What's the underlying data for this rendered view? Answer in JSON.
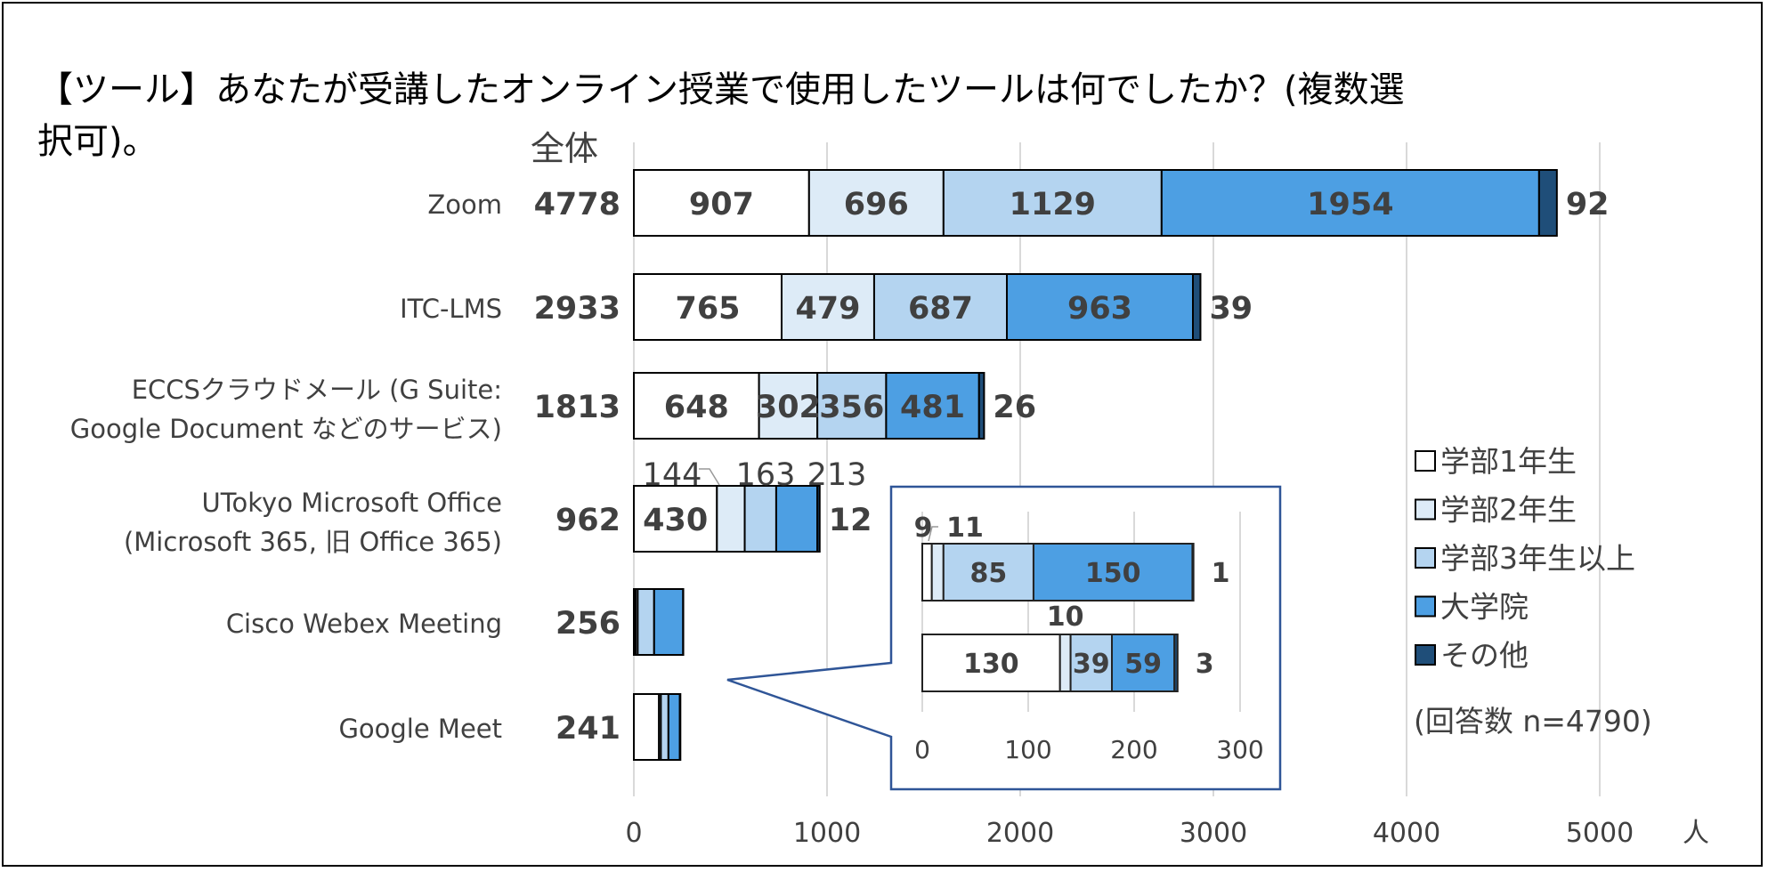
{
  "chart_data": {
    "type": "bar",
    "orientation": "horizontal",
    "stacked": true,
    "title_line1": "【ツール】あなたが受講したオンライン授業で使用したツールは何でしたか？(複数選",
    "title_line2": "択可)。",
    "total_header": "全体",
    "xlabel": "人",
    "xlim": [
      0,
      5000
    ],
    "xticks": [
      "0",
      "1000",
      "2000",
      "3000",
      "4000",
      "5000"
    ],
    "grid": true,
    "legend_position": "right",
    "note": "(回答数 n=4790)",
    "categories": [
      {
        "line1": "Zoom",
        "line2": ""
      },
      {
        "line1": "ITC-LMS",
        "line2": ""
      },
      {
        "line1": "ECCSクラウドメール (G Suite:",
        "line2": "Google Document などのサービス)"
      },
      {
        "line1": "UTokyo Microsoft Office",
        "line2": "(Microsoft 365, 旧 Office 365)"
      },
      {
        "line1": "Cisco Webex Meeting",
        "line2": ""
      },
      {
        "line1": "Google Meet",
        "line2": ""
      }
    ],
    "totals": [
      "4778",
      "2933",
      "1813",
      "962",
      "256",
      "241"
    ],
    "series": [
      {
        "name": "学部1年生",
        "color": "#ffffff",
        "values": [
          907,
          765,
          648,
          430,
          9,
          130
        ]
      },
      {
        "name": "学部2年生",
        "color": "#ddebf7",
        "values": [
          696,
          479,
          302,
          144,
          11,
          10
        ]
      },
      {
        "name": "学部3年生以上",
        "color": "#b4d4f0",
        "values": [
          1129,
          687,
          356,
          163,
          85,
          39
        ]
      },
      {
        "name": "大学院",
        "color": "#4d9fe3",
        "values": [
          1954,
          963,
          481,
          213,
          150,
          59
        ]
      },
      {
        "name": "その他",
        "color": "#1f4e79",
        "values": [
          92,
          39,
          26,
          12,
          1,
          3
        ]
      }
    ],
    "inset": {
      "categories": [
        "Cisco Webex Meeting",
        "Google Meet"
      ],
      "xlim": [
        0,
        300
      ],
      "xticks": [
        "0",
        "100",
        "200",
        "300"
      ]
    }
  }
}
